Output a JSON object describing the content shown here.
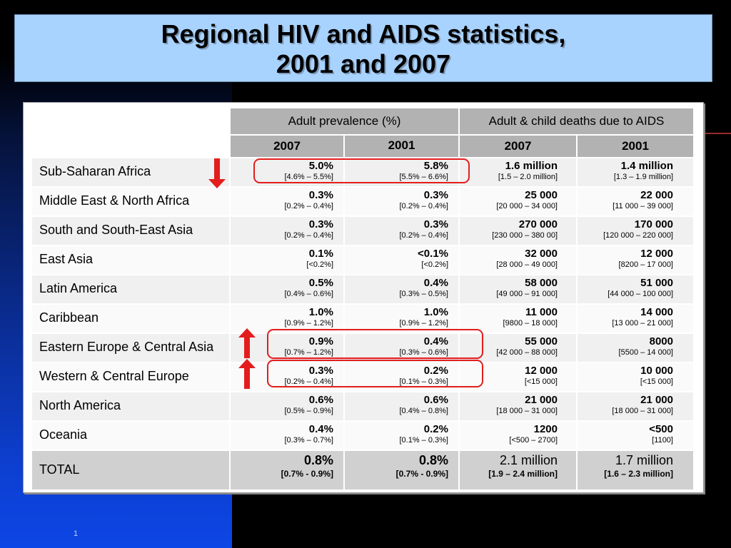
{
  "slide": {
    "title_line1": "Regional HIV and AIDS statistics,",
    "title_line2": "2001 and 2007",
    "page_number": "1"
  },
  "table": {
    "group_headers": [
      "Adult prevalence (%)",
      "Adult & child deaths due to AIDS"
    ],
    "year_headers": [
      "2007",
      "2001",
      "2007",
      "2001"
    ],
    "rows": [
      {
        "region": "Sub-Saharan Africa",
        "cells": [
          {
            "main": "5.0%",
            "range": "[4.6% – 5.5%]"
          },
          {
            "main": "5.8%",
            "range": "[5.5% – 6.6%]"
          },
          {
            "main": "1.6 million",
            "range": "[1.5 – 2.0 million]"
          },
          {
            "main": "1.4 million",
            "range": "[1.3 – 1.9 million]"
          }
        ]
      },
      {
        "region": "Middle East & North Africa",
        "cells": [
          {
            "main": "0.3%",
            "range": "[0.2% – 0.4%]"
          },
          {
            "main": "0.3%",
            "range": "[0.2% – 0.4%]"
          },
          {
            "main": "25 000",
            "range": "[20 000 – 34 000]"
          },
          {
            "main": "22 000",
            "range": "[11 000 – 39 000]"
          }
        ]
      },
      {
        "region": "South and South-East Asia",
        "cells": [
          {
            "main": "0.3%",
            "range": "[0.2% – 0.4%]"
          },
          {
            "main": "0.3%",
            "range": "[0.2% – 0.4%]"
          },
          {
            "main": "270 000",
            "range": "[230 000 – 380 00]"
          },
          {
            "main": "170 000",
            "range": "[120 000 – 220 000]"
          }
        ]
      },
      {
        "region": "East Asia",
        "cells": [
          {
            "main": "0.1%",
            "range": "[<0.2%]"
          },
          {
            "main": "<0.1%",
            "range": "[<0.2%]"
          },
          {
            "main": "32 000",
            "range": "[28 000 – 49 000]"
          },
          {
            "main": "12 000",
            "range": "[8200 – 17 000]"
          }
        ]
      },
      {
        "region": "Latin America",
        "cells": [
          {
            "main": "0.5%",
            "range": "[0.4% – 0.6%]"
          },
          {
            "main": "0.4%",
            "range": "[0.3% – 0.5%]"
          },
          {
            "main": "58 000",
            "range": "[49 000 – 91 000]"
          },
          {
            "main": "51 000",
            "range": "[44 000 – 100 000]"
          }
        ]
      },
      {
        "region": "Caribbean",
        "cells": [
          {
            "main": "1.0%",
            "range": "[0.9% – 1.2%]"
          },
          {
            "main": "1.0%",
            "range": "[0.9% – 1.2%]"
          },
          {
            "main": "11 000",
            "range": "[9800 – 18 000]"
          },
          {
            "main": "14 000",
            "range": "[13 000 – 21 000]"
          }
        ]
      },
      {
        "region": "Eastern Europe & Central Asia",
        "cells": [
          {
            "main": "0.9%",
            "range": "[0.7% – 1.2%]"
          },
          {
            "main": "0.4%",
            "range": "[0.3% – 0.6%]"
          },
          {
            "main": "55 000",
            "range": "[42 000 – 88 000]"
          },
          {
            "main": "8000",
            "range": "[5500 – 14 000]"
          }
        ]
      },
      {
        "region": "Western & Central Europe",
        "cells": [
          {
            "main": "0.3%",
            "range": "[0.2% – 0.4%]"
          },
          {
            "main": "0.2%",
            "range": "[0.1% – 0.3%]"
          },
          {
            "main": "12 000",
            "range": "[<15 000]"
          },
          {
            "main": "10 000",
            "range": "[<15 000]"
          }
        ]
      },
      {
        "region": "North America",
        "cells": [
          {
            "main": "0.6%",
            "range": "[0.5% – 0.9%]"
          },
          {
            "main": "0.6%",
            "range": "[0.4% – 0.8%]"
          },
          {
            "main": "21 000",
            "range": "[18 000 – 31 000]"
          },
          {
            "main": "21 000",
            "range": "[18 000 – 31 000]"
          }
        ]
      },
      {
        "region": "Oceania",
        "cells": [
          {
            "main": "0.4%",
            "range": "[0.3% – 0.7%]"
          },
          {
            "main": "0.2%",
            "range": "[0.1% – 0.3%]"
          },
          {
            "main": "1200",
            "range": "[<500 – 2700]"
          },
          {
            "main": "<500",
            "range": "[1100]"
          }
        ]
      }
    ],
    "total": {
      "region": "TOTAL",
      "cells": [
        {
          "main": "0.8%",
          "range": "[0.7% - 0.9%]"
        },
        {
          "main": "0.8%",
          "range": "[0.7% - 0.9%]"
        },
        {
          "main": "2.1 million",
          "range": "[1.9 – 2.4 million]"
        },
        {
          "main": "1.7 million",
          "range": "[1.6 – 2.3 million]"
        }
      ]
    }
  },
  "annotations": {
    "highlight_color": "#e31d1d",
    "arrow_color": "#e31d1d",
    "arrows": [
      {
        "row": "Sub-Saharan Africa",
        "direction": "down"
      },
      {
        "row": "Eastern Europe & Central Asia",
        "direction": "up"
      },
      {
        "row": "Western & Central Europe",
        "direction": "up"
      }
    ]
  },
  "colors": {
    "title_bg": "#a9d3ff",
    "header_bg": "#b2b2b2",
    "slide_bg": "#000000",
    "accent_blue": "#0d46e6"
  }
}
